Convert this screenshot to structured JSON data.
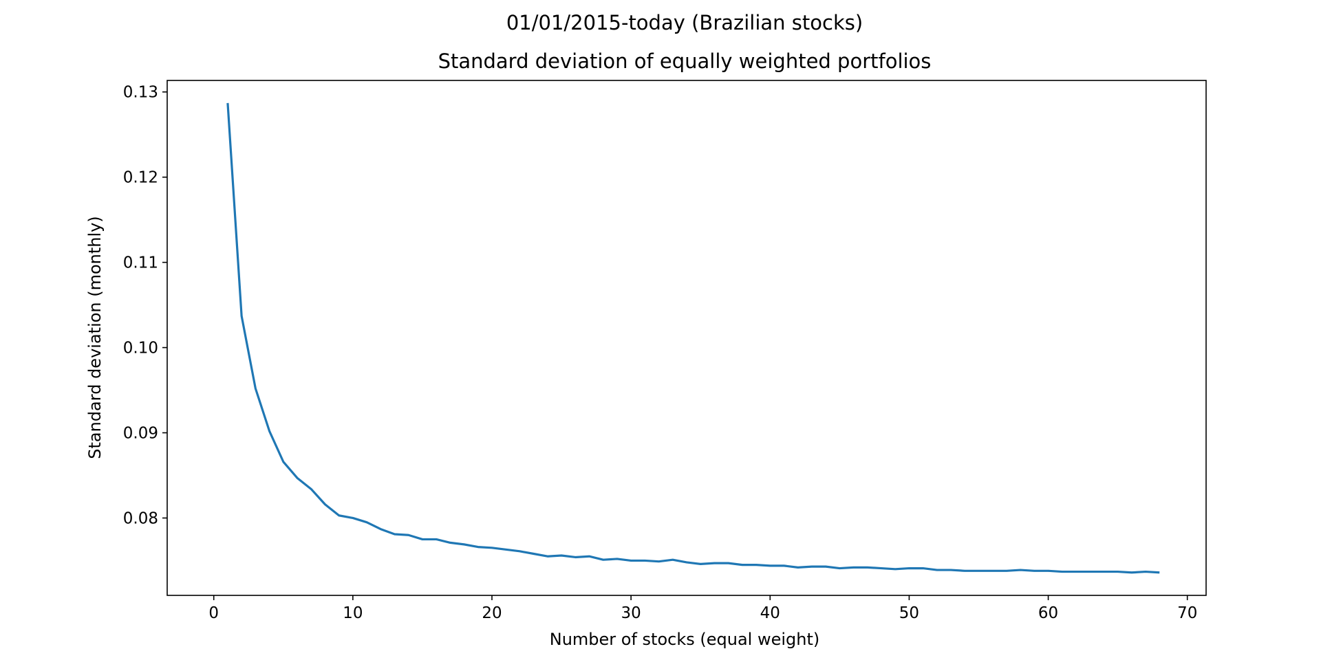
{
  "chart_data": {
    "type": "line",
    "suptitle": "01/01/2015-today (Brazilian stocks)",
    "title": "Standard deviation of equally weighted portfolios",
    "xlabel": "Number of stocks (equal weight)",
    "ylabel": "Standard deviation (monthly)",
    "xlim": [
      -3.35,
      71.35
    ],
    "ylim": [
      0.07092,
      0.13135
    ],
    "x_ticks": [
      0,
      10,
      20,
      30,
      40,
      50,
      60,
      70
    ],
    "x_tick_labels": [
      "0",
      "10",
      "20",
      "30",
      "40",
      "50",
      "60",
      "70"
    ],
    "y_ticks": [
      0.08,
      0.09,
      0.1,
      0.11,
      0.12,
      0.13
    ],
    "y_tick_labels": [
      "0.08",
      "0.09",
      "0.10",
      "0.11",
      "0.12",
      "0.13"
    ],
    "grid": false,
    "line_color": "#1f77b4",
    "x": [
      1,
      2,
      3,
      4,
      5,
      6,
      7,
      8,
      9,
      10,
      11,
      12,
      13,
      14,
      15,
      16,
      17,
      18,
      19,
      20,
      21,
      22,
      23,
      24,
      25,
      26,
      27,
      28,
      29,
      30,
      31,
      32,
      33,
      34,
      35,
      36,
      37,
      38,
      39,
      40,
      41,
      42,
      43,
      44,
      45,
      46,
      47,
      48,
      49,
      50,
      51,
      52,
      53,
      54,
      55,
      56,
      57,
      58,
      59,
      60,
      61,
      62,
      63,
      64,
      65,
      66,
      67,
      68
    ],
    "y": [
      0.1287,
      0.1037,
      0.0952,
      0.0902,
      0.0866,
      0.0847,
      0.0834,
      0.0816,
      0.0803,
      0.08,
      0.0795,
      0.0787,
      0.0781,
      0.078,
      0.0775,
      0.0775,
      0.0771,
      0.0769,
      0.0766,
      0.0765,
      0.0763,
      0.0761,
      0.0758,
      0.0755,
      0.0756,
      0.0754,
      0.0755,
      0.0751,
      0.0752,
      0.075,
      0.075,
      0.0749,
      0.0751,
      0.0748,
      0.0746,
      0.0747,
      0.0747,
      0.0745,
      0.0745,
      0.0744,
      0.0744,
      0.0742,
      0.0743,
      0.0743,
      0.0741,
      0.0742,
      0.0742,
      0.0741,
      0.074,
      0.0741,
      0.0741,
      0.0739,
      0.0739,
      0.0738,
      0.0738,
      0.0738,
      0.0738,
      0.0739,
      0.0738,
      0.0738,
      0.0737,
      0.0737,
      0.0737,
      0.0737,
      0.0737,
      0.0736,
      0.0737,
      0.0736
    ]
  }
}
